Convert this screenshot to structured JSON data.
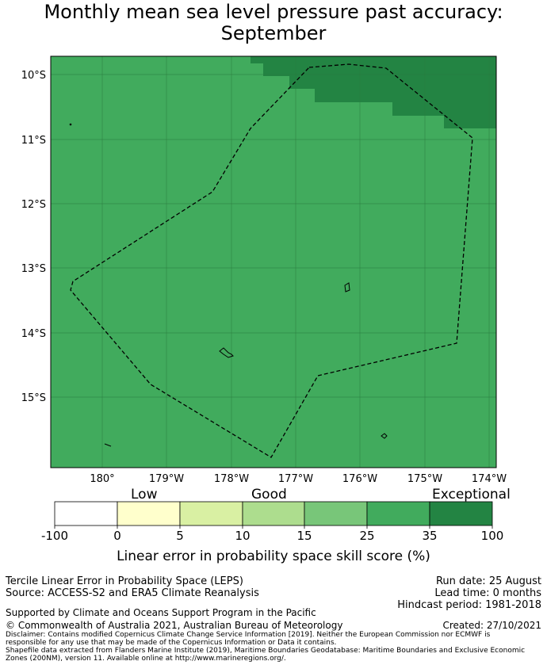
{
  "title": {
    "line1": "Monthly mean sea level pressure past accuracy:",
    "line2": "September"
  },
  "map": {
    "lat_labels": [
      "10°S",
      "11°S",
      "12°S",
      "13°S",
      "14°S",
      "15°S"
    ],
    "lon_labels": [
      "180°",
      "179°W",
      "178°W",
      "177°W",
      "176°W",
      "175°W",
      "174°W"
    ],
    "colors": {
      "good": "#41ab5d",
      "exceptional": "#238443",
      "gridline": "#2a7a3f"
    }
  },
  "colorbar": {
    "category_labels": {
      "low": "Low",
      "good": "Good",
      "exceptional": "Exceptional"
    },
    "ticks": [
      "-100",
      "0",
      "5",
      "10",
      "15",
      "25",
      "35",
      "100"
    ],
    "colors": [
      "#ffffff",
      "#ffffcc",
      "#d9f0a3",
      "#addd8e",
      "#78c679",
      "#41ab5d",
      "#238443"
    ],
    "label": "Linear error in probability space skill score (%)"
  },
  "footer": {
    "left1": "Tercile Linear Error in Probability Space (LEPS)",
    "left2": "Source: ACCESS-S2 and ERA5 Climate Reanalysis",
    "right1": "Run date: 25 August",
    "right2": "Lead time: 0 months",
    "right3": "Hindcast period: 1981-2018",
    "supported": "Supported by Climate and Oceans Support Program in the Pacific",
    "copyright": "© Commonwealth of Australia 2021, Australian Bureau of Meteorology",
    "created": "Created: 27/10/2021",
    "disclaimer1": "Disclaimer: Contains modified Copernicus Climate Change Service Information [2019]. Neither the European Commission nor ECMWF is",
    "disclaimer2": "responsible for any use that may be made of the Copernicus Information or Data it contains.",
    "disclaimer3": "Shapefile data extracted from Flanders Marine Institute (2019), Maritime Boundaries Geodatabase: Maritime Boundaries and Exclusive Economic",
    "disclaimer4": "Zones (200NM), version 11. Available online at http://www.marineregions.org/."
  }
}
